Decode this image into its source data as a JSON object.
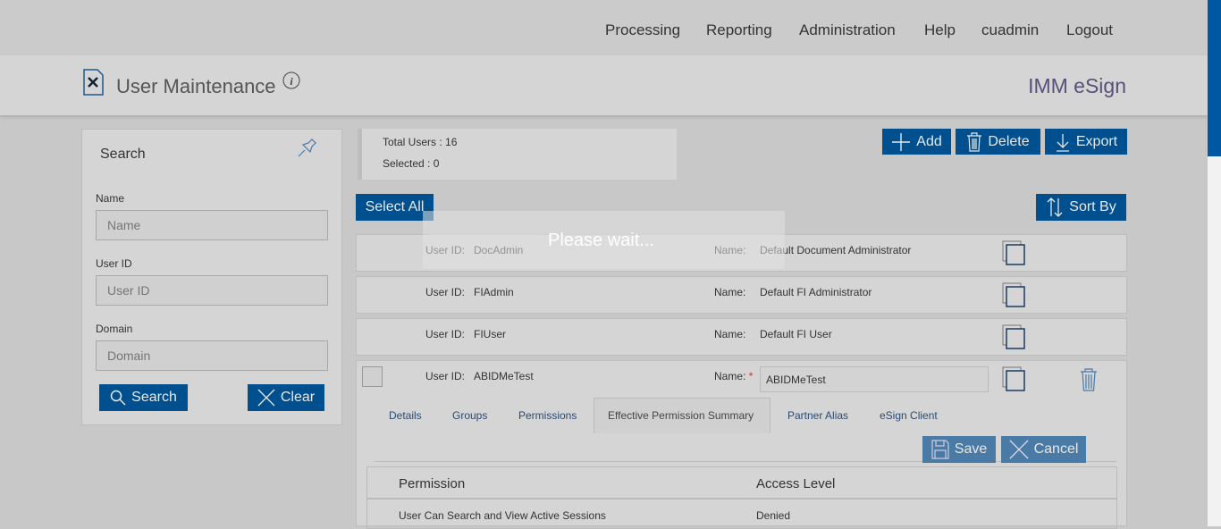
{
  "nav": [
    "Processing",
    "Reporting",
    "Administration",
    "Help",
    "cuadmin",
    "Logout"
  ],
  "page": {
    "title": "User Maintenance",
    "brand": "IMM eSign"
  },
  "search": {
    "title": "Search",
    "name_label": "Name",
    "name_placeholder": "Name",
    "userid_label": "User ID",
    "userid_placeholder": "User ID",
    "domain_label": "Domain",
    "domain_placeholder": "Domain",
    "search_button": "Search",
    "clear_button": "Clear"
  },
  "summary": {
    "total": "Total Users : 16",
    "selected": "Selected : 0"
  },
  "toolbar": {
    "add": "Add",
    "delete": "Delete",
    "export": "Export",
    "select_all": "Select All",
    "sort_by": "Sort By"
  },
  "loading": "Please wait...",
  "labels": {
    "user_id": "User ID:",
    "name": "Name:",
    "required": "*"
  },
  "users": [
    {
      "id": "DocAdmin",
      "name": "Default Document Administrator"
    },
    {
      "id": "FIAdmin",
      "name": "Default FI Administrator"
    },
    {
      "id": "FIUser",
      "name": "Default FI User"
    }
  ],
  "expanded": {
    "id": "ABIDMeTest",
    "name": "ABIDMeTest",
    "tabs": [
      "Details",
      "Groups",
      "Permissions",
      "Effective Permission Summary",
      "Partner Alias",
      "eSign Client"
    ],
    "active_tab": "Effective Permission Summary",
    "save": "Save",
    "cancel": "Cancel",
    "table": {
      "headers": [
        "Permission",
        "Access Level"
      ],
      "rows": [
        [
          "User Can Search and View Active Sessions",
          "Denied"
        ]
      ]
    }
  },
  "colors": {
    "primary": "#00508f",
    "scroll": "#0058a3"
  }
}
